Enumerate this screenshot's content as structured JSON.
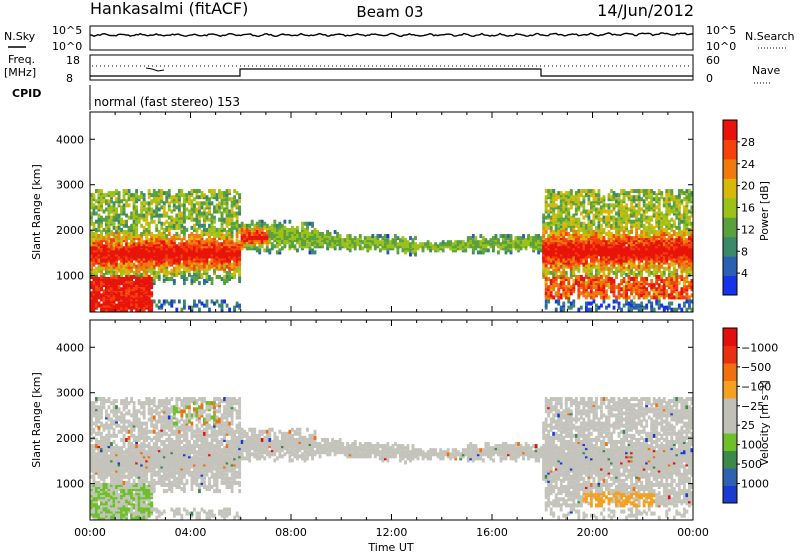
{
  "header": {
    "station": "Hankasalmi (fitACF)",
    "beam": "Beam 03",
    "date": "14/Jun/2012"
  },
  "status_panels": {
    "nsky_label": "N.Sky",
    "nsky_ticks": [
      "10^5",
      "10^0"
    ],
    "nsearch_label": "N.Search",
    "nsearch_ticks": [
      "10^5",
      "10^0"
    ],
    "freq_label": "Freq.",
    "freq_unit": "[MHz]",
    "freq_ticks": [
      "18",
      "8"
    ],
    "nave_label": "Nave",
    "nave_ticks": [
      "60",
      "0"
    ],
    "cpid_label": "CPID",
    "cpid_text": "normal (fast stereo) 153"
  },
  "chart_data": [
    {
      "type": "heatmap",
      "name": "power",
      "ylabel": "Slant Range [km]",
      "xlabel": "",
      "x_ticks": [
        "00:00",
        "04:00",
        "08:00",
        "12:00",
        "16:00",
        "20:00",
        "00:00"
      ],
      "y_ticks": [
        1000,
        2000,
        3000,
        4000
      ],
      "ylim": [
        200,
        4600
      ],
      "xlim_hours": [
        0,
        24
      ],
      "colorbar": {
        "label": "Power [dB]",
        "ticks": [
          "4",
          "8",
          "12",
          "16",
          "20",
          "24",
          "28"
        ],
        "colors": [
          "#1533e8",
          "#2b5fb3",
          "#3a8a6a",
          "#5aa03c",
          "#9cc21a",
          "#d9b80c",
          "#f07a0c",
          "#f4420a",
          "#e8140a"
        ]
      }
    },
    {
      "type": "heatmap",
      "name": "velocity",
      "ylabel": "Slant Range [km]",
      "xlabel": "Time UT",
      "x_ticks": [
        "00:00",
        "04:00",
        "08:00",
        "12:00",
        "16:00",
        "20:00",
        "00:00"
      ],
      "y_ticks": [
        1000,
        2000,
        3000,
        4000
      ],
      "ylim": [
        200,
        4600
      ],
      "xlim_hours": [
        0,
        24
      ],
      "colorbar": {
        "label": "Velocity [m s⁻¹]",
        "ticks": [
          "1000",
          "500",
          "100",
          "25",
          "−25",
          "−100",
          "−500",
          "−1000"
        ],
        "colors": [
          "#1a3ad0",
          "#2e62b0",
          "#3a8a4a",
          "#6ec02a",
          "#c0c0b8",
          "#c0c0b8",
          "#f5a020",
          "#f07010",
          "#e83010",
          "#e01010"
        ]
      }
    }
  ]
}
